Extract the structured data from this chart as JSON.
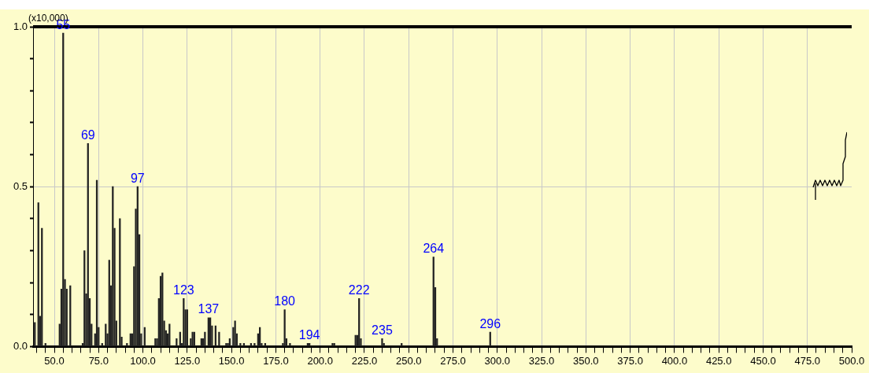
{
  "chart_data": {
    "type": "bar",
    "ylabel": "(x10,000)",
    "color": "#222222",
    "x": [
      39,
      41,
      42,
      43,
      45,
      53,
      54,
      55,
      56,
      57,
      59,
      66,
      67,
      68,
      69,
      70,
      71,
      73,
      74,
      75,
      77,
      79,
      80,
      81,
      82,
      83,
      84,
      85,
      87,
      88,
      91,
      93,
      94,
      95,
      96,
      97,
      98,
      99,
      101,
      107,
      108,
      109,
      110,
      111,
      112,
      113,
      114,
      115,
      119,
      121,
      122,
      123,
      124,
      125,
      127,
      128,
      129,
      133,
      134,
      135,
      137,
      138,
      139,
      141,
      143,
      147,
      148,
      149,
      151,
      152,
      153,
      155,
      157,
      161,
      163,
      165,
      166,
      167,
      169,
      179,
      180,
      181,
      183,
      193,
      194,
      207,
      208,
      220,
      221,
      222,
      223,
      235,
      236,
      246,
      264,
      265,
      266,
      296
    ],
    "values": [
      0.075,
      0.45,
      0.095,
      0.37,
      0.01,
      0.07,
      0.18,
      0.98,
      0.21,
      0.18,
      0.19,
      0.01,
      0.3,
      0.165,
      0.635,
      0.15,
      0.07,
      0.04,
      0.52,
      0.06,
      0.01,
      0.07,
      0.04,
      0.27,
      0.19,
      0.5,
      0.37,
      0.08,
      0.4,
      0.03,
      0.01,
      0.04,
      0.04,
      0.25,
      0.43,
      0.5,
      0.35,
      0.04,
      0.06,
      0.025,
      0.025,
      0.15,
      0.22,
      0.23,
      0.08,
      0.05,
      0.04,
      0.07,
      0.025,
      0.045,
      0.01,
      0.15,
      0.115,
      0.115,
      0.025,
      0.045,
      0.045,
      0.025,
      0.025,
      0.045,
      0.09,
      0.09,
      0.065,
      0.065,
      0.045,
      0.01,
      0.01,
      0.025,
      0.06,
      0.08,
      0.04,
      0.01,
      0.01,
      0.01,
      0.01,
      0.04,
      0.06,
      0.01,
      0.01,
      0.01,
      0.115,
      0.025,
      0.01,
      0.01,
      0.01,
      0.01,
      0.01,
      0.035,
      0.035,
      0.15,
      0.025,
      0.025,
      0.01,
      0.01,
      0.28,
      0.185,
      0.025,
      0.045
    ],
    "xlim": [
      38,
      500
    ],
    "xticks": [
      {
        "value": 40,
        "label": null
      },
      {
        "value": 45,
        "label": null
      },
      {
        "value": 50,
        "label": "50.0"
      },
      {
        "value": 55,
        "label": null
      },
      {
        "value": 60,
        "label": null
      },
      {
        "value": 65,
        "label": null
      },
      {
        "value": 70,
        "label": null
      },
      {
        "value": 75,
        "label": "75.0"
      },
      {
        "value": 80,
        "label": null
      },
      {
        "value": 85,
        "label": null
      },
      {
        "value": 90,
        "label": null
      },
      {
        "value": 95,
        "label": null
      },
      {
        "value": 100,
        "label": "100.0"
      },
      {
        "value": 105,
        "label": null
      },
      {
        "value": 110,
        "label": null
      },
      {
        "value": 115,
        "label": null
      },
      {
        "value": 120,
        "label": null
      },
      {
        "value": 125,
        "label": "125.0"
      },
      {
        "value": 130,
        "label": null
      },
      {
        "value": 135,
        "label": null
      },
      {
        "value": 140,
        "label": null
      },
      {
        "value": 145,
        "label": null
      },
      {
        "value": 150,
        "label": "150.0"
      },
      {
        "value": 155,
        "label": null
      },
      {
        "value": 160,
        "label": null
      },
      {
        "value": 165,
        "label": null
      },
      {
        "value": 170,
        "label": null
      },
      {
        "value": 175,
        "label": "175.0"
      },
      {
        "value": 180,
        "label": null
      },
      {
        "value": 185,
        "label": null
      },
      {
        "value": 190,
        "label": null
      },
      {
        "value": 195,
        "label": null
      },
      {
        "value": 200,
        "label": "200.0"
      },
      {
        "value": 205,
        "label": null
      },
      {
        "value": 210,
        "label": null
      },
      {
        "value": 215,
        "label": null
      },
      {
        "value": 220,
        "label": null
      },
      {
        "value": 225,
        "label": "225.0"
      },
      {
        "value": 230,
        "label": null
      },
      {
        "value": 235,
        "label": null
      },
      {
        "value": 240,
        "label": null
      },
      {
        "value": 245,
        "label": null
      },
      {
        "value": 250,
        "label": "250.0"
      },
      {
        "value": 255,
        "label": null
      },
      {
        "value": 260,
        "label": null
      },
      {
        "value": 265,
        "label": null
      },
      {
        "value": 270,
        "label": null
      },
      {
        "value": 275,
        "label": "275.0"
      },
      {
        "value": 280,
        "label": null
      },
      {
        "value": 285,
        "label": null
      },
      {
        "value": 290,
        "label": null
      },
      {
        "value": 295,
        "label": null
      },
      {
        "value": 300,
        "label": "300.0"
      },
      {
        "value": 305,
        "label": null
      },
      {
        "value": 310,
        "label": null
      },
      {
        "value": 315,
        "label": null
      },
      {
        "value": 320,
        "label": null
      },
      {
        "value": 325,
        "label": "325.0"
      },
      {
        "value": 330,
        "label": null
      },
      {
        "value": 335,
        "label": null
      },
      {
        "value": 340,
        "label": null
      },
      {
        "value": 345,
        "label": null
      },
      {
        "value": 350,
        "label": "350.0"
      },
      {
        "value": 355,
        "label": null
      },
      {
        "value": 360,
        "label": null
      },
      {
        "value": 365,
        "label": null
      },
      {
        "value": 370,
        "label": null
      },
      {
        "value": 375,
        "label": "375.0"
      },
      {
        "value": 380,
        "label": null
      },
      {
        "value": 385,
        "label": null
      },
      {
        "value": 390,
        "label": null
      },
      {
        "value": 395,
        "label": null
      },
      {
        "value": 400,
        "label": "400.0"
      },
      {
        "value": 405,
        "label": null
      },
      {
        "value": 410,
        "label": null
      },
      {
        "value": 415,
        "label": null
      },
      {
        "value": 420,
        "label": null
      },
      {
        "value": 425,
        "label": "425.0"
      },
      {
        "value": 430,
        "label": null
      },
      {
        "value": 435,
        "label": null
      },
      {
        "value": 440,
        "label": null
      },
      {
        "value": 445,
        "label": null
      },
      {
        "value": 450,
        "label": "450.0"
      },
      {
        "value": 455,
        "label": null
      },
      {
        "value": 460,
        "label": null
      },
      {
        "value": 465,
        "label": null
      },
      {
        "value": 470,
        "label": null
      },
      {
        "value": 475,
        "label": "475.0"
      },
      {
        "value": 480,
        "label": null
      },
      {
        "value": 485,
        "label": null
      },
      {
        "value": 490,
        "label": null
      },
      {
        "value": 495,
        "label": null
      },
      {
        "value": 500,
        "label": "500.0"
      }
    ],
    "ylim": [
      0,
      1
    ],
    "yticks": [
      {
        "value": 0,
        "label": "0.0"
      },
      {
        "value": 0.1,
        "label": null
      },
      {
        "value": 0.2,
        "label": null
      },
      {
        "value": 0.3,
        "label": null
      },
      {
        "value": 0.4,
        "label": null
      },
      {
        "value": 0.5,
        "label": "0.5"
      },
      {
        "value": 0.6,
        "label": null
      },
      {
        "value": 0.7,
        "label": null
      },
      {
        "value": 0.8,
        "label": null
      },
      {
        "value": 0.9,
        "label": null
      },
      {
        "value": 1,
        "label": "1.0"
      }
    ],
    "grid": true,
    "annotations": [
      {
        "text": "55",
        "x": 55,
        "y": 0.98
      },
      {
        "text": "69",
        "x": 69,
        "y": 0.635
      },
      {
        "text": "97",
        "x": 97,
        "y": 0.5
      },
      {
        "text": "123",
        "x": 123,
        "y": 0.15
      },
      {
        "text": "137",
        "x": 137,
        "y": 0.09
      },
      {
        "text": "180",
        "x": 180,
        "y": 0.115
      },
      {
        "text": "194",
        "x": 194,
        "y": 0.01
      },
      {
        "text": "222",
        "x": 222,
        "y": 0.15
      },
      {
        "text": "235",
        "x": 235,
        "y": 0.025
      },
      {
        "text": "264",
        "x": 264,
        "y": 0.28
      },
      {
        "text": "296",
        "x": 296,
        "y": 0.045
      }
    ]
  }
}
